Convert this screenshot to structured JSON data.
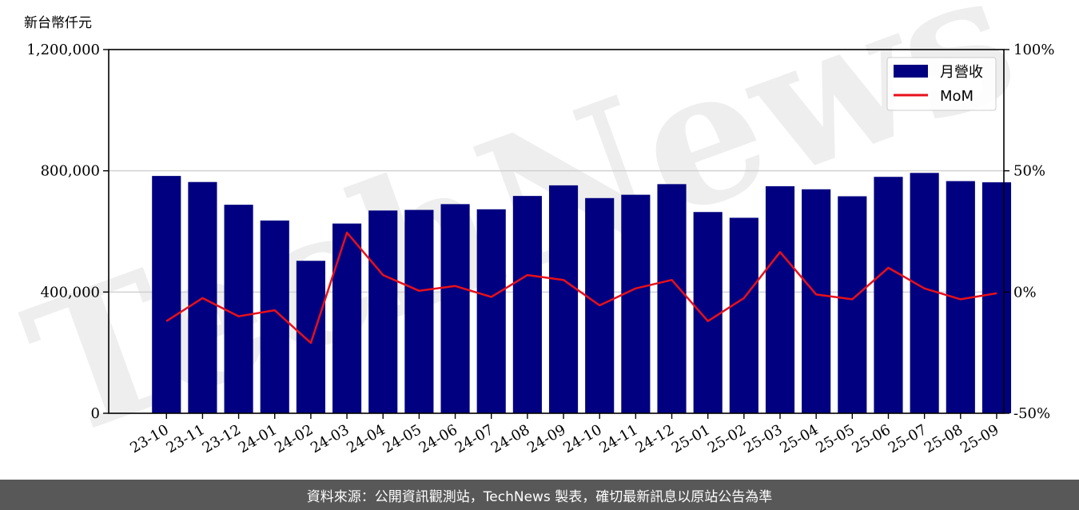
{
  "chart_data": {
    "type": "bar",
    "unit_label": "新台幣仟元",
    "categories": [
      "23-10",
      "23-11",
      "23-12",
      "24-01",
      "24-02",
      "24-03",
      "24-04",
      "24-05",
      "24-06",
      "24-07",
      "24-08",
      "24-09",
      "24-10",
      "24-11",
      "24-12",
      "25-01",
      "25-02",
      "25-03",
      "25-04",
      "25-05",
      "25-06",
      "25-07",
      "25-08",
      "25-09"
    ],
    "series": [
      {
        "name": "月營收",
        "type": "bar",
        "axis": "left",
        "color": "#000080",
        "values": [
          783000,
          763000,
          688000,
          636000,
          503000,
          626000,
          669000,
          671000,
          690000,
          673000,
          717000,
          752000,
          710000,
          721000,
          756000,
          664000,
          645000,
          749000,
          739000,
          716000,
          780000,
          793000,
          766000,
          762000
        ]
      },
      {
        "name": "MoM",
        "type": "line",
        "axis": "right",
        "color": "#e8101a",
        "values": [
          -12,
          -2.5,
          -10,
          -7.5,
          -21,
          24.5,
          7,
          0.5,
          2.5,
          -2,
          7,
          5,
          -5.5,
          1.5,
          5,
          -12,
          -2.5,
          16.5,
          -1,
          -3,
          10,
          1.5,
          -3,
          -0.5
        ]
      }
    ],
    "y_left": {
      "min": 0,
      "max": 1200000,
      "ticks": [
        "0",
        "400,000",
        "800,000",
        "1,200,000"
      ],
      "tick_values": [
        0,
        400000,
        800000,
        1200000
      ]
    },
    "y_right": {
      "min": -50,
      "max": 100,
      "ticks": [
        "-50%",
        "0%",
        "50%",
        "100%"
      ],
      "tick_values": [
        -50,
        0,
        50,
        100
      ]
    },
    "grid": "horizontal",
    "legend_position": "top-right"
  },
  "watermark": "TechNews",
  "footer": {
    "text": "資料來源：公開資訊觀測站，TechNews 製表，確切最新訊息以原站公告為準"
  }
}
